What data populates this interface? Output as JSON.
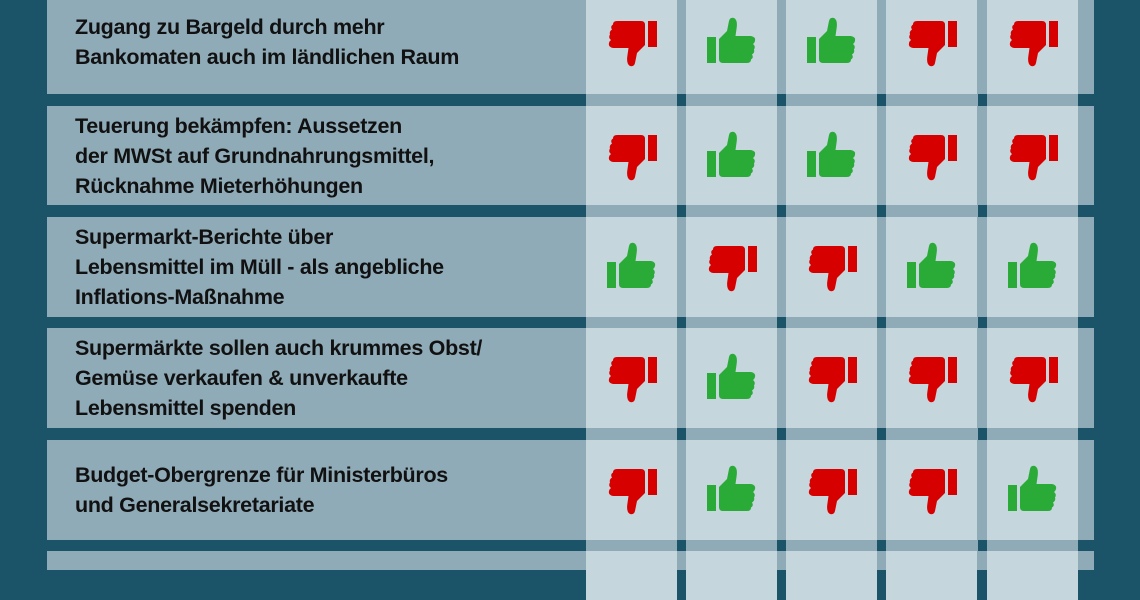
{
  "colors": {
    "background": "#1b5468",
    "label_cell": "#8fabb8",
    "vote_cell": "#c5d6dd",
    "thumbs_up": "#2aab38",
    "thumbs_down": "#d60000"
  },
  "rows": [
    {
      "label": "Zugang zu Bargeld durch mehr\nBankomaten auch im ländlichen Raum",
      "votes": [
        "thumbs-down",
        "thumbs-up",
        "thumbs-up",
        "thumbs-down",
        "thumbs-down"
      ]
    },
    {
      "label": "Teuerung bekämpfen: Aussetzen\nder MWSt auf Grundnahrungsmittel,\nRücknahme Mieterhöhungen",
      "votes": [
        "thumbs-down",
        "thumbs-up",
        "thumbs-up",
        "thumbs-down",
        "thumbs-down"
      ]
    },
    {
      "label": "Supermarkt-Berichte über\nLebensmittel im Müll - als angebliche\nInflations-Maßnahme",
      "votes": [
        "thumbs-up",
        "thumbs-down",
        "thumbs-down",
        "thumbs-up",
        "thumbs-up"
      ]
    },
    {
      "label": "Supermärkte sollen auch krummes Obst/\nGemüse verkaufen & unverkaufte\nLebensmittel spenden",
      "votes": [
        "thumbs-down",
        "thumbs-up",
        "thumbs-down",
        "thumbs-down",
        "thumbs-down"
      ]
    },
    {
      "label": "Budget-Obergrenze für Ministerbüros\nund Generalsekretariate",
      "votes": [
        "thumbs-down",
        "thumbs-up",
        "thumbs-down",
        "thumbs-down",
        "thumbs-up"
      ]
    },
    {
      "label": "",
      "votes": [
        "",
        "",
        "",
        "",
        ""
      ]
    }
  ]
}
